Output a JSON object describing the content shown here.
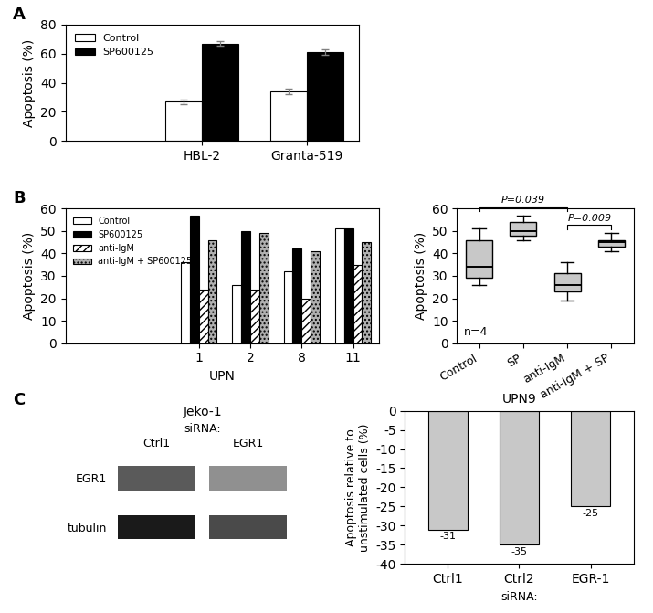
{
  "chart_data": [
    {
      "type": "bar",
      "ylabel": "Apoptosis (%)",
      "categories": [
        "HBL-2",
        "Granta-519"
      ],
      "series": [
        {
          "name": "Control",
          "color": "#FFFFFF",
          "values": [
            27,
            34
          ],
          "errors": [
            1.5,
            2.0
          ]
        },
        {
          "name": "SP600125",
          "color": "#000000",
          "values": [
            67,
            61
          ],
          "errors": [
            1.5,
            2.0
          ]
        }
      ],
      "ylim": [
        0,
        80
      ],
      "yticks": [
        0,
        20,
        40,
        60,
        80
      ],
      "legend": "upper left",
      "annotations": [
        {
          "text": "A"
        }
      ]
    },
    {
      "type": "bar",
      "xlabel": "UPN",
      "ylabel": "Apoptosis (%)",
      "categories": [
        "1",
        "2",
        "8",
        "11"
      ],
      "series": [
        {
          "name": "Control",
          "color": "#FFFFFF",
          "values": [
            36,
            26,
            32,
            51
          ]
        },
        {
          "name": "SP600125",
          "color": "#000000",
          "values": [
            57,
            50,
            42,
            51
          ]
        },
        {
          "name": "anti-IgM",
          "color": "#FFFFFF",
          "values": [
            24,
            24,
            20,
            35
          ]
        },
        {
          "name": "anti-IgM + SP600125",
          "color": "#B0B0B0",
          "values": [
            46,
            49,
            41,
            45
          ]
        }
      ],
      "ylim": [
        0,
        60
      ],
      "yticks": [
        0,
        10,
        20,
        30,
        40,
        50,
        60
      ],
      "legend": "upper left",
      "annotations": [
        {
          "text": "B"
        }
      ]
    },
    {
      "type": "box",
      "ylabel": "Apoptosis (%)",
      "categories": [
        "Control",
        "SP",
        "anti-IgM",
        "anti-IgM + SP"
      ],
      "q1": [
        29,
        48,
        23,
        43
      ],
      "median": [
        34,
        50,
        26,
        45
      ],
      "q3": [
        46,
        54,
        31,
        46
      ],
      "whisker_low": [
        26,
        46,
        19,
        41
      ],
      "whisker_high": [
        51,
        57,
        36,
        49
      ],
      "color": "#C8C8C8",
      "ylim": [
        0,
        60
      ],
      "yticks": [
        0,
        10,
        20,
        30,
        40,
        50,
        60
      ],
      "annotations": [
        {
          "text": "P=0.039",
          "from": "Control",
          "to": "anti-IgM"
        },
        {
          "text": "P=0.009",
          "from": "anti-IgM",
          "to": "anti-IgM + SP"
        },
        {
          "text": "n=4"
        }
      ]
    },
    {
      "type": "blot",
      "title": "Jeko-1",
      "xlabel": "siRNA:",
      "categories": [
        "Ctrl1",
        "EGR1"
      ],
      "series": [
        {
          "name": "EGR1",
          "colors": [
            "#5a5a5a",
            "#909090"
          ]
        },
        {
          "name": "tubulin",
          "colors": [
            "#1a1a1a",
            "#4a4a4a"
          ]
        }
      ],
      "annotations": [
        {
          "text": "C"
        }
      ]
    },
    {
      "type": "bar",
      "title": "UPN9",
      "xlabel": "siRNA:",
      "ylabel": "Apoptosis relative to\nunstimulated cells (%)",
      "categories": [
        "Ctrl1",
        "Ctrl2",
        "EGR-1"
      ],
      "values": [
        -31,
        -35,
        -25
      ],
      "color": "#C8C8C8",
      "ylim": [
        -40,
        0
      ],
      "yticks": [
        0,
        -5,
        -10,
        -15,
        -20,
        -25,
        -30,
        -35,
        -40
      ],
      "data_labels": true
    }
  ]
}
